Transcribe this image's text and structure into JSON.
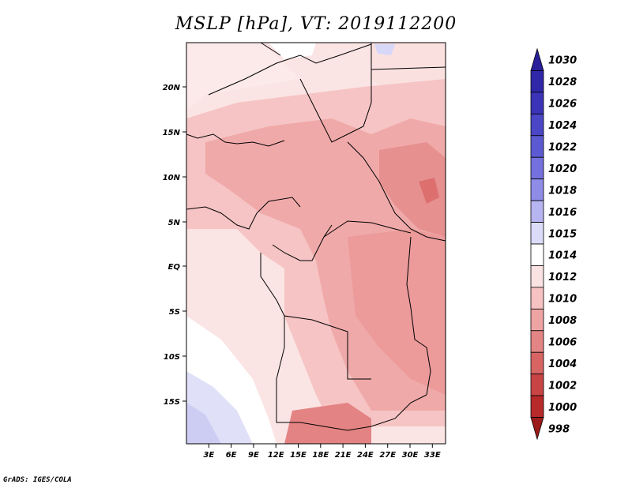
{
  "title": "MSLP [hPa], VT: 2019112200",
  "footer": "GrADS: IGES/COLA",
  "map": {
    "lon_labels": [
      "3E",
      "6E",
      "9E",
      "12E",
      "15E",
      "18E",
      "21E",
      "24E",
      "27E",
      "30E",
      "33E"
    ],
    "lat_labels": [
      "20N",
      "15N",
      "10N",
      "5N",
      "EQ",
      "5S",
      "10S",
      "15S"
    ]
  },
  "colorbar": {
    "levels": [
      "1030",
      "1028",
      "1026",
      "1024",
      "1022",
      "1020",
      "1018",
      "1016",
      "1015",
      "1014",
      "1012",
      "1010",
      "1008",
      "1006",
      "1004",
      "1002",
      "1000",
      "998"
    ],
    "colors": [
      "#2a1f9a",
      "#3027a8",
      "#3b34b8",
      "#4a46c6",
      "#5c5ad2",
      "#7471de",
      "#8f8ce8",
      "#b7b5f1",
      "#dcdcf9",
      "#ffffff",
      "#fbe2e2",
      "#f6c2c2",
      "#efa4a4",
      "#e48585",
      "#d86464",
      "#c94444",
      "#b82a2a",
      "#9c1b1b"
    ]
  },
  "colors": {
    "land_light": "#fbe4e4",
    "land_mid": "#f5c3c3",
    "land_dark": "#ee9f9f",
    "land_darker": "#e58787",
    "high_pressure": "#d5d5f6"
  }
}
